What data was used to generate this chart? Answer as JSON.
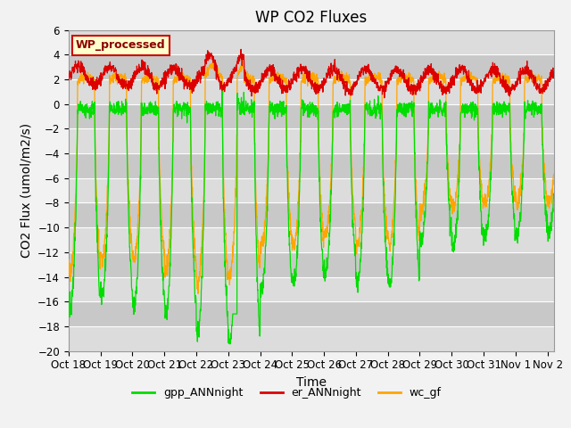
{
  "title": "WP CO2 Fluxes",
  "xlabel": "Time",
  "ylabel_text": "CO2 Flux (umol/m2/s)",
  "ylim": [
    -20,
    6
  ],
  "xlim_days": [
    0,
    15.2
  ],
  "tick_labels": [
    "Oct 18",
    "Oct 19",
    "Oct 20",
    "Oct 21",
    "Oct 22",
    "Oct 23",
    "Oct 24",
    "Oct 25",
    "Oct 26",
    "Oct 27",
    "Oct 28",
    "Oct 29",
    "Oct 30",
    "Oct 31",
    "Nov 1",
    "Nov 2"
  ],
  "tick_positions": [
    0,
    1,
    2,
    3,
    4,
    5,
    6,
    7,
    8,
    9,
    10,
    11,
    12,
    13,
    14,
    15
  ],
  "color_green": "#00DD00",
  "color_red": "#DD0000",
  "color_orange": "#FFA500",
  "legend_labels": [
    "gpp_ANNnight",
    "er_ANNnight",
    "wc_gf"
  ],
  "watermark_text": "WP_processed",
  "watermark_color": "#8B0000",
  "plot_bg_light": "#DCDCDC",
  "plot_bg_dark": "#C8C8C8",
  "grid_color": "#FFFFFF",
  "fig_bg": "#F2F2F2",
  "title_fontsize": 12,
  "label_fontsize": 10,
  "tick_fontsize": 8.5,
  "dip_depths_gpp": [
    -16.5,
    -15.5,
    -16.5,
    -17.0,
    -18.5,
    -19.2,
    -15.0,
    -14.5,
    -13.5,
    -14.5,
    -14.8,
    -11.0,
    -11.5,
    -10.8,
    -10.5
  ],
  "dip_depths_wc": [
    -13.5,
    -12.5,
    -12.5,
    -13.5,
    -14.5,
    -14.0,
    -11.5,
    -11.5,
    -10.5,
    -11.5,
    -11.5,
    -8.5,
    -8.5,
    -8.0,
    -8.0
  ],
  "er_base": 2.0,
  "er_amp": 0.8,
  "night_start": 0.82,
  "night_end": 0.28,
  "day_green": -0.4,
  "day_wc": 1.9
}
